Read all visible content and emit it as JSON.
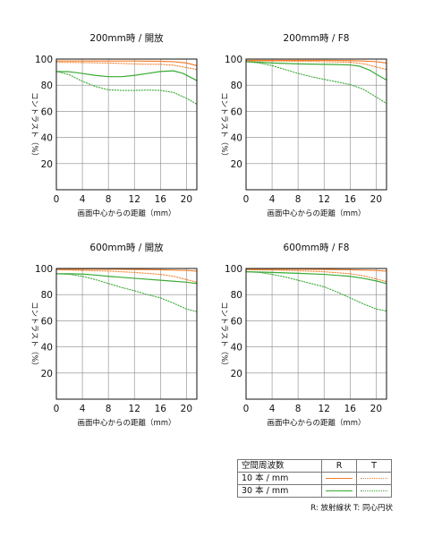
{
  "chart_data": [
    {
      "type": "line",
      "title": "200mm時 / 開放",
      "xlabel": "画面中心からの距離（mm）",
      "ylabel": "コントラスト（%）",
      "xlim": [
        0,
        21.6
      ],
      "ylim": [
        0,
        100
      ],
      "xticks": [
        0,
        4,
        8,
        12,
        16,
        20
      ],
      "yticks": [
        20,
        40,
        60,
        80,
        100
      ],
      "grid": true,
      "series": [
        {
          "name": "10本/mm R",
          "x": [
            0,
            4,
            8,
            12,
            16,
            18,
            20,
            21.6
          ],
          "y": [
            98.5,
            98.5,
            98.5,
            98.5,
            98.3,
            98.0,
            97.0,
            95.0
          ]
        },
        {
          "name": "10本/mm T",
          "x": [
            0,
            4,
            8,
            12,
            14,
            16,
            18,
            20,
            21.6
          ],
          "y": [
            97.5,
            97.3,
            97.0,
            96.3,
            96.0,
            96.0,
            95.3,
            93.5,
            92.0
          ]
        },
        {
          "name": "30本/mm R",
          "x": [
            0,
            2,
            4,
            6,
            8,
            10,
            12,
            14,
            16,
            18,
            19.5,
            21.6
          ],
          "y": [
            90.5,
            90.3,
            89.0,
            87.5,
            86.5,
            86.5,
            87.5,
            89.0,
            90.5,
            91.0,
            89.0,
            83.5
          ]
        },
        {
          "name": "30本/mm T",
          "x": [
            0,
            2,
            4,
            6,
            8,
            10,
            12,
            14,
            16,
            18,
            20,
            21.6
          ],
          "y": [
            90.5,
            88.0,
            83.0,
            79.0,
            76.5,
            76.0,
            76.0,
            76.3,
            76.0,
            74.5,
            70.0,
            65.5
          ]
        }
      ]
    },
    {
      "type": "line",
      "title": "200mm時 / F8",
      "xlabel": "画面中心からの距離（mm）",
      "ylabel": "コントラスト（%）",
      "xlim": [
        0,
        21.6
      ],
      "ylim": [
        0,
        100
      ],
      "xticks": [
        0,
        4,
        8,
        12,
        16,
        20
      ],
      "yticks": [
        20,
        40,
        60,
        80,
        100
      ],
      "grid": true,
      "series": [
        {
          "name": "10本/mm R",
          "x": [
            0,
            4,
            8,
            12,
            16,
            18,
            20,
            21.6
          ],
          "y": [
            99.0,
            99.0,
            99.0,
            99.0,
            98.8,
            98.5,
            98.0,
            97.0
          ]
        },
        {
          "name": "10本/mm T",
          "x": [
            0,
            4,
            8,
            12,
            16,
            18,
            20,
            21.6
          ],
          "y": [
            98.5,
            98.5,
            98.3,
            98.0,
            97.5,
            96.5,
            94.0,
            92.0
          ]
        },
        {
          "name": "30本/mm R",
          "x": [
            0,
            2,
            4,
            8,
            12,
            14,
            16,
            17.5,
            19,
            20.5,
            21.6
          ],
          "y": [
            98.0,
            97.5,
            97.0,
            96.3,
            96.0,
            95.8,
            95.5,
            94.5,
            91.5,
            87.0,
            84.0
          ]
        },
        {
          "name": "30本/mm T",
          "x": [
            0,
            2,
            4,
            6,
            8,
            10,
            12,
            14,
            16,
            18,
            20,
            21.6
          ],
          "y": [
            98.0,
            97.0,
            95.0,
            92.0,
            89.0,
            86.5,
            84.5,
            82.5,
            80.5,
            77.0,
            71.0,
            66.0
          ]
        }
      ]
    },
    {
      "type": "line",
      "title": "600mm時 / 開放",
      "xlabel": "画面中心からの距離（mm）",
      "ylabel": "コントラスト（%）",
      "xlim": [
        0,
        21.6
      ],
      "ylim": [
        0,
        100
      ],
      "xticks": [
        0,
        4,
        8,
        12,
        16,
        20
      ],
      "yticks": [
        20,
        40,
        60,
        80,
        100
      ],
      "grid": true,
      "series": [
        {
          "name": "10本/mm R",
          "x": [
            0,
            4,
            8,
            12,
            16,
            20,
            21.6
          ],
          "y": [
            99.5,
            99.5,
            99.5,
            99.3,
            99.0,
            98.5,
            98.0
          ]
        },
        {
          "name": "10本/mm T",
          "x": [
            0,
            4,
            8,
            12,
            16,
            18,
            20,
            21.6
          ],
          "y": [
            99.0,
            98.5,
            98.0,
            97.0,
            95.5,
            94.0,
            91.5,
            89.5
          ]
        },
        {
          "name": "30本/mm R",
          "x": [
            0,
            2,
            4,
            6,
            8,
            12,
            16,
            20,
            21.6
          ],
          "y": [
            96.0,
            96.0,
            95.7,
            95.0,
            94.0,
            92.5,
            91.0,
            89.5,
            88.5
          ]
        },
        {
          "name": "30本/mm T",
          "x": [
            0,
            2,
            4,
            6,
            8,
            10,
            12,
            14,
            16,
            18,
            20,
            21.6
          ],
          "y": [
            96.0,
            95.5,
            94.0,
            91.5,
            88.5,
            85.5,
            83.0,
            80.0,
            77.5,
            73.5,
            69.0,
            67.0
          ]
        }
      ]
    },
    {
      "type": "line",
      "title": "600mm時 / F8",
      "xlabel": "画面中心からの距離（mm）",
      "ylabel": "コントラスト（%）",
      "xlim": [
        0,
        21.6
      ],
      "ylim": [
        0,
        100
      ],
      "xticks": [
        0,
        4,
        8,
        12,
        16,
        20
      ],
      "yticks": [
        20,
        40,
        60,
        80,
        100
      ],
      "grid": true,
      "series": [
        {
          "name": "10本/mm R",
          "x": [
            0,
            4,
            8,
            12,
            16,
            20,
            21.6
          ],
          "y": [
            99.5,
            99.5,
            99.5,
            99.3,
            99.0,
            98.5,
            98.0
          ]
        },
        {
          "name": "10本/mm T",
          "x": [
            0,
            4,
            8,
            12,
            16,
            18,
            20,
            21.6
          ],
          "y": [
            99.0,
            98.8,
            98.3,
            97.5,
            96.0,
            94.5,
            92.0,
            90.0
          ]
        },
        {
          "name": "30本/mm R",
          "x": [
            0,
            4,
            8,
            12,
            16,
            18,
            20,
            21.6
          ],
          "y": [
            97.5,
            97.0,
            96.3,
            95.5,
            94.0,
            92.5,
            90.5,
            88.5
          ]
        },
        {
          "name": "30本/mm T",
          "x": [
            0,
            2,
            4,
            6,
            8,
            10,
            12,
            14,
            16,
            18,
            20,
            21.6
          ],
          "y": [
            97.5,
            97.0,
            95.5,
            93.5,
            91.0,
            88.5,
            86.0,
            82.0,
            77.5,
            73.0,
            69.0,
            67.5
          ]
        }
      ]
    }
  ],
  "series_styles": {
    "10本/mm R": {
      "color": "#f07f2b",
      "dash": "solid"
    },
    "10本/mm T": {
      "color": "#f07f2b",
      "dash": "dotted"
    },
    "30本/mm R": {
      "color": "#3aaa35",
      "dash": "solid"
    },
    "30本/mm T": {
      "color": "#3aaa35",
      "dash": "dotted"
    }
  },
  "legend": {
    "header": "空間周波数",
    "col_r": "R",
    "col_t": "T",
    "row1": "10 本 / mm",
    "row2": "30 本 / mm",
    "note": "R: 放射線状  T: 同心円状"
  }
}
